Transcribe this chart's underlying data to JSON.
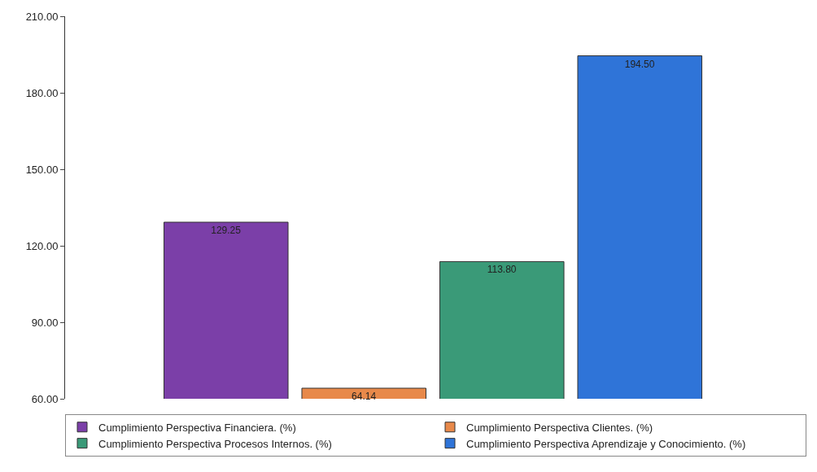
{
  "chart_data": {
    "type": "bar",
    "categories": [
      null
    ],
    "series": [
      {
        "name": "Cumplimiento Perspectiva Financiera. (%)",
        "color": "#7b3fa8",
        "values": [
          129.25
        ],
        "value_labels": [
          "129.25"
        ]
      },
      {
        "name": "Cumplimiento Perspectiva Clientes. (%)",
        "color": "#e8894a",
        "values": [
          64.14
        ],
        "value_labels": [
          "64.14"
        ]
      },
      {
        "name": "Cumplimiento Perspectiva Procesos Internos. (%)",
        "color": "#3a9a78",
        "values": [
          113.8
        ],
        "value_labels": [
          "113.80"
        ]
      },
      {
        "name": "Cumplimiento Perspectiva Aprendizaje y Conocimiento. (%)",
        "color": "#2f74d8",
        "values": [
          194.5
        ],
        "value_labels": [
          "194.50"
        ]
      }
    ],
    "ylim": [
      60,
      210
    ],
    "yticks": [
      {
        "value": 60,
        "label": "60.00"
      },
      {
        "value": 90,
        "label": "90.00"
      },
      {
        "value": 120,
        "label": "120.00"
      },
      {
        "value": 150,
        "label": "150.00"
      },
      {
        "value": 180,
        "label": "180.00"
      },
      {
        "value": 210,
        "label": "210.00"
      }
    ],
    "tick_labels": "y",
    "grid": false,
    "legend": "bottom"
  }
}
